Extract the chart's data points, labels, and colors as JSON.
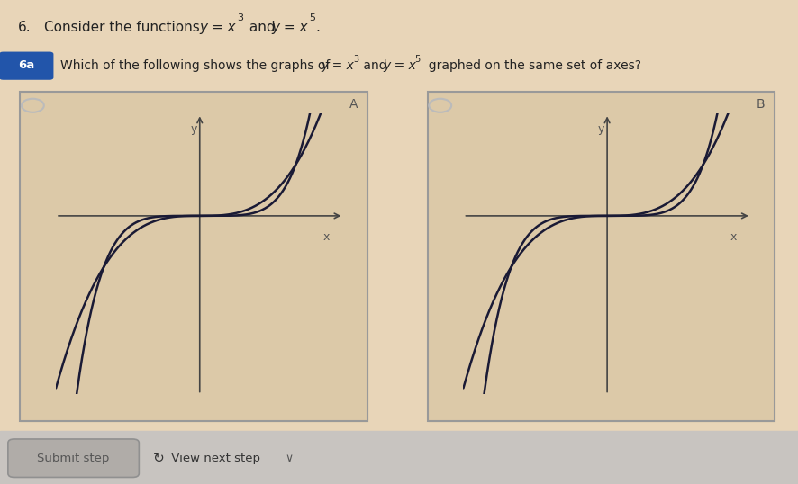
{
  "bg_color": "#e8d5b8",
  "panel_bg": "#dcc9a8",
  "curve_color": "#1a1a35",
  "axis_color": "#444444",
  "border_color": "#999999",
  "radio_color": "#bbbbbb",
  "xlim": [
    -1.5,
    1.5
  ],
  "ylim": [
    -3.5,
    2.0
  ],
  "footer_bg": "#c8c4c0",
  "submit_text": "Submit step",
  "view_text": " View next step",
  "panel_A_label": "A",
  "panel_B_label": "B"
}
